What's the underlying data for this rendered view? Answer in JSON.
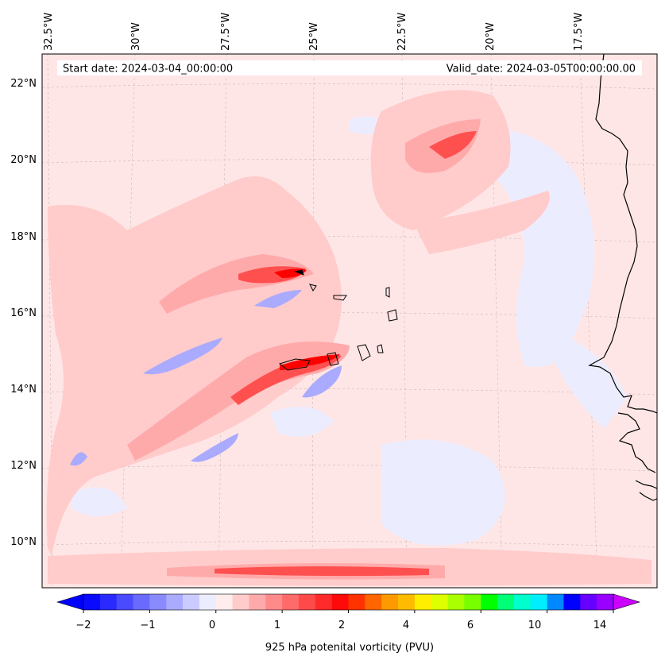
{
  "map": {
    "header": {
      "start": "Start date: 2024-03-04_00:00:00",
      "valid": "Valid_date: 2024-03-05T00:00:00.00"
    },
    "lon_labels": [
      "32.5°W",
      "30°W",
      "27.5°W",
      "25°W",
      "22.5°W",
      "20°W",
      "17.5°W"
    ],
    "lat_labels": [
      "22°N",
      "20°N",
      "18°N",
      "16°N",
      "14°N",
      "12°N",
      "10°N"
    ],
    "region": "Cabo Verde / West African coast",
    "colors": {
      "background": "#ffe6e6",
      "light_pink": "#ffc8c8",
      "pink": "#ff9f9f",
      "red": "#ff3838",
      "dark_red": "#ff0000",
      "light_blue": "#e8e8ff",
      "blue": "#a0a0ff",
      "coast": "#000000"
    }
  },
  "colorbar": {
    "label": "925 hPa potenital vorticity (PVU)",
    "tick_labels": [
      "−2",
      "−1",
      "0",
      "1",
      "2",
      "4",
      "6",
      "10",
      "14"
    ],
    "tick_values": [
      -2,
      -1,
      0,
      1,
      2,
      4,
      6,
      10,
      14
    ],
    "colors": [
      "#0a0aff",
      "#2a2aff",
      "#4a4aff",
      "#6a6aff",
      "#8a8aff",
      "#aaaaff",
      "#cbcbff",
      "#ececff",
      "#ffecec",
      "#ffcbcb",
      "#ffaaaa",
      "#ff8a8a",
      "#ff6a6a",
      "#ff4a4a",
      "#ff2a2a",
      "#ff0a0a",
      "#ff3300",
      "#ff6600",
      "#ff9900",
      "#ffbb00",
      "#ffee00",
      "#ddff00",
      "#aaff00",
      "#77ff00",
      "#00ff00",
      "#00ff77",
      "#00ffcc",
      "#00eeff",
      "#0088ff",
      "#0000ff",
      "#6600ff",
      "#9900ff"
    ],
    "extend_min_color": "#0000ff",
    "extend_max_color": "#cc00ff"
  }
}
